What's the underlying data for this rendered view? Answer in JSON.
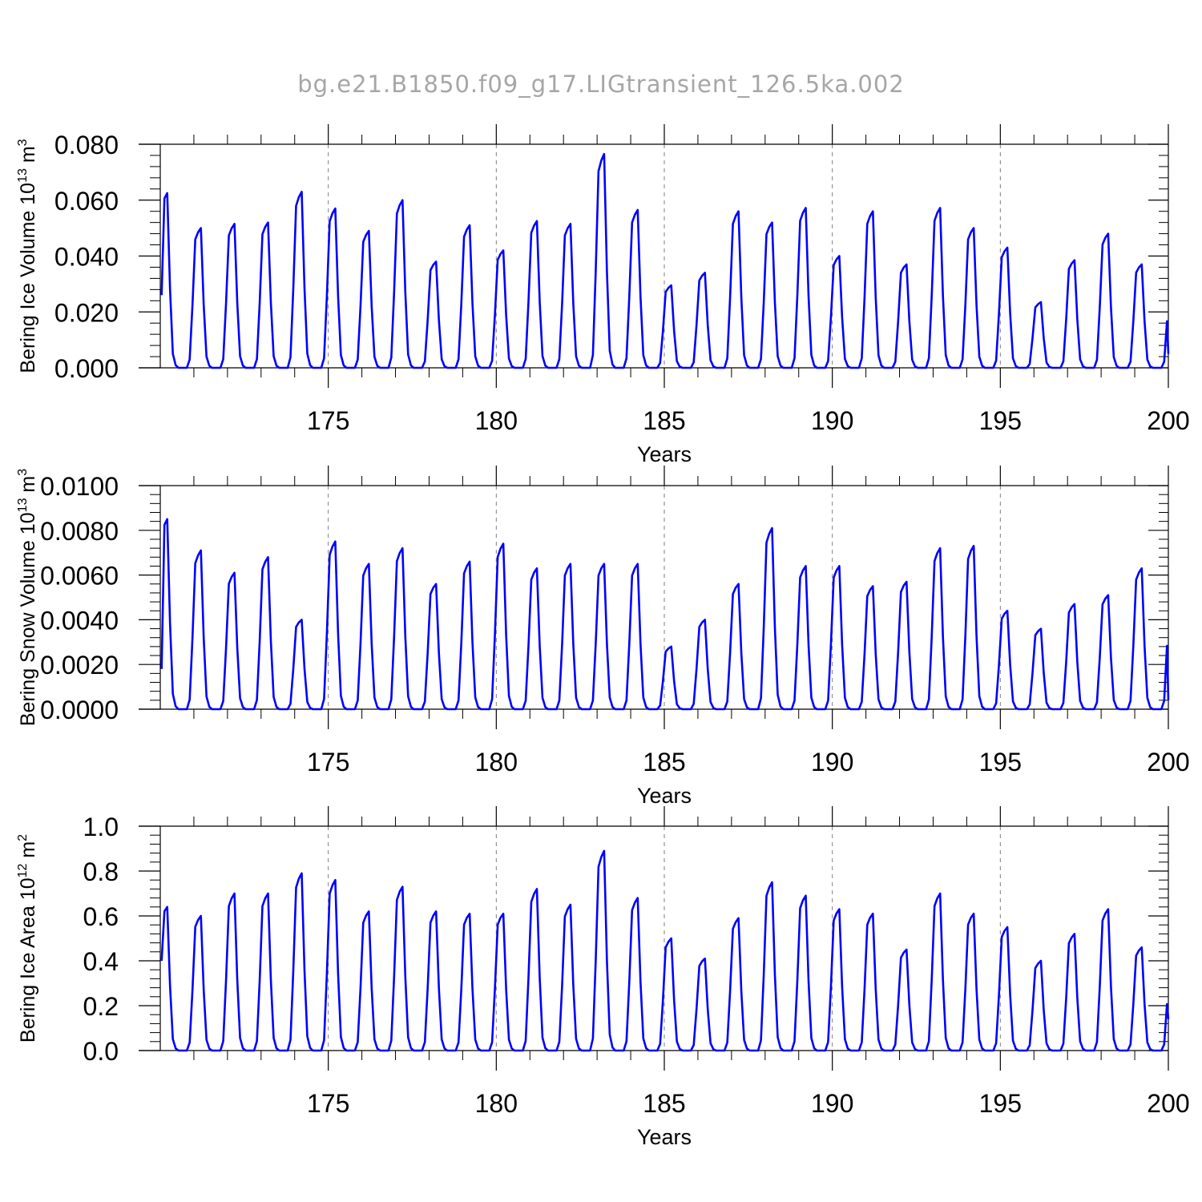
{
  "title": "bg.e21.B1850.f09_g17.LIGtransient_126.5ka.002",
  "colors": {
    "line": "#0000ff",
    "axis": "#000000",
    "title": "#a6a6a6",
    "grid": "#808080"
  },
  "chart_data": [
    {
      "type": "line",
      "ylabel": {
        "main": "Bering Ice Volume 10",
        "exp": "13",
        "unit": " m",
        "unit_exp": "3"
      },
      "xlabel": "Years",
      "xlim": [
        170.0,
        200.0
      ],
      "ylim": [
        0.0,
        0.08
      ],
      "xticks": [
        175,
        180,
        185,
        190,
        195,
        200
      ],
      "xtick_labels": [
        "175",
        "180",
        "185",
        "190",
        "195",
        "200"
      ],
      "yticks": [
        0.0,
        0.02,
        0.04,
        0.06,
        0.08
      ],
      "ytick_labels": [
        "0.000",
        "0.020",
        "0.040",
        "0.060",
        "0.080"
      ],
      "grid_x": "dashed at major ticks",
      "series": [
        {
          "peaks": [
            0.0625,
            0.05,
            0.0515,
            0.052,
            0.063,
            0.057,
            0.049,
            0.06,
            0.038,
            0.051,
            0.042,
            0.0525,
            0.0515,
            0.0765,
            0.0565,
            0.0295,
            0.034,
            0.056,
            0.052,
            0.0572,
            0.04,
            0.056,
            0.037,
            0.0572,
            0.05,
            0.043,
            0.0235,
            0.0385,
            0.048,
            0.037
          ],
          "start": 0.026,
          "end": 0.005
        }
      ]
    },
    {
      "type": "line",
      "ylabel": {
        "main": "Bering Snow Volume 10",
        "exp": "13",
        "unit": " m",
        "unit_exp": "3"
      },
      "xlabel": "Years",
      "xlim": [
        170.0,
        200.0
      ],
      "ylim": [
        0.0,
        0.01
      ],
      "xticks": [
        175,
        180,
        185,
        190,
        195,
        200
      ],
      "xtick_labels": [
        "175",
        "180",
        "185",
        "190",
        "195",
        "200"
      ],
      "yticks": [
        0.0,
        0.002,
        0.004,
        0.006,
        0.008,
        0.01
      ],
      "ytick_labels": [
        "0.0000",
        "0.0020",
        "0.0040",
        "0.0060",
        "0.0080",
        "0.0100"
      ],
      "grid_x": "dashed at major ticks",
      "series": [
        {
          "peaks": [
            0.0085,
            0.0071,
            0.0061,
            0.0068,
            0.004,
            0.0075,
            0.0065,
            0.0072,
            0.0056,
            0.0066,
            0.0074,
            0.0063,
            0.0065,
            0.0065,
            0.0065,
            0.0028,
            0.004,
            0.0056,
            0.0081,
            0.0064,
            0.0064,
            0.0055,
            0.0057,
            0.0072,
            0.0073,
            0.0044,
            0.0036,
            0.0047,
            0.0051,
            0.0063
          ],
          "start": 0.0018,
          "end": 0.0004
        }
      ]
    },
    {
      "type": "line",
      "ylabel": {
        "main": "Bering Ice Area 10",
        "exp": "12",
        "unit": " m",
        "unit_exp": "2"
      },
      "xlabel": "Years",
      "xlim": [
        170.0,
        200.0
      ],
      "ylim": [
        0.0,
        1.0
      ],
      "xticks": [
        175,
        180,
        185,
        190,
        195,
        200
      ],
      "xtick_labels": [
        "175",
        "180",
        "185",
        "190",
        "195",
        "200"
      ],
      "yticks": [
        0.0,
        0.2,
        0.4,
        0.6,
        0.8,
        1.0
      ],
      "ytick_labels": [
        "0.0",
        "0.2",
        "0.4",
        "0.6",
        "0.8",
        "1.0"
      ],
      "grid_x": "dashed at major ticks",
      "series": [
        {
          "peaks": [
            0.64,
            0.6,
            0.7,
            0.7,
            0.79,
            0.76,
            0.62,
            0.73,
            0.62,
            0.61,
            0.61,
            0.72,
            0.65,
            0.89,
            0.68,
            0.5,
            0.41,
            0.59,
            0.75,
            0.69,
            0.63,
            0.61,
            0.45,
            0.7,
            0.61,
            0.55,
            0.4,
            0.52,
            0.63,
            0.46
          ],
          "start": 0.4,
          "end": 0.14
        }
      ]
    }
  ]
}
